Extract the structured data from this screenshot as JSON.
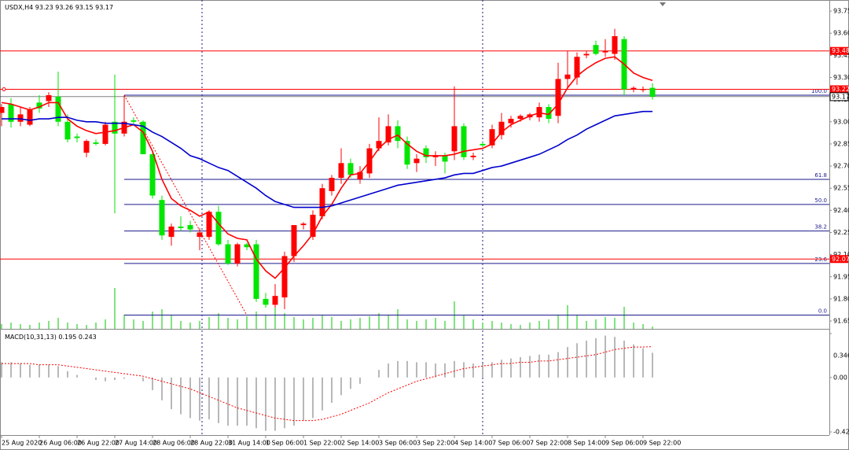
{
  "chart_data": [
    {
      "type": "candlestick",
      "title": "USDX,H4",
      "x": [
        "25 Aug 2020",
        null,
        null,
        null,
        "26 Aug 06:00",
        null,
        null,
        null,
        "26 Aug 22:00",
        null,
        null,
        null,
        "27 Aug 14:00",
        null,
        null,
        null,
        "28 Aug 06:00",
        null,
        null,
        null,
        "28 Aug 22:00",
        null,
        null,
        null,
        "31 Aug 14:00",
        null,
        null,
        null,
        "1 Sep 06:00",
        null,
        null,
        null,
        "1 Sep 22:00",
        null,
        null,
        null,
        "2 Sep 14:00",
        null,
        null,
        null,
        "3 Sep 06:00",
        null,
        null,
        null,
        "3 Sep 22:00",
        null,
        null,
        null,
        "4 Sep 14:00",
        null,
        null,
        null,
        "7 Sep 06:00",
        null,
        null,
        null,
        "7 Sep 22:00",
        null,
        null,
        null,
        "8 Sep 14:00",
        null,
        null,
        null,
        "9 Sep 06:00",
        null,
        null,
        null,
        "9 Sep 22:00",
        null
      ],
      "open": [
        93.06,
        93.12,
        93.0,
        92.98,
        93.13,
        93.14,
        93.17,
        93.0,
        92.9,
        92.79,
        92.86,
        92.85,
        93.0,
        92.92,
        93.01,
        93.0,
        92.78,
        92.47,
        92.22,
        92.29,
        92.3,
        92.22,
        92.22,
        92.39,
        92.17,
        92.04,
        92.17,
        92.17,
        91.8,
        91.76,
        91.81,
        92.09,
        92.3,
        92.22,
        92.36,
        92.53,
        92.62,
        92.72,
        92.61,
        92.65,
        92.82,
        92.86,
        92.97,
        92.87,
        92.72,
        92.82,
        92.76,
        92.77,
        92.8,
        92.97,
        92.76,
        92.85,
        92.84,
        92.91,
        92.99,
        93.02,
        93.03,
        93.03,
        93.1,
        93.04,
        93.29,
        93.3,
        93.45,
        93.52,
        93.47,
        93.46,
        93.56,
        93.22,
        93.22,
        93.23
      ],
      "high": [
        93.12,
        93.16,
        93.1,
        93.1,
        93.18,
        93.2,
        93.34,
        93.05,
        92.92,
        92.88,
        92.88,
        93.0,
        93.32,
        93.18,
        93.03,
        93.01,
        92.8,
        92.5,
        92.31,
        92.36,
        92.33,
        92.28,
        92.4,
        92.43,
        92.2,
        92.18,
        92.18,
        92.2,
        91.84,
        91.9,
        92.12,
        92.3,
        92.32,
        92.4,
        92.58,
        92.64,
        92.82,
        92.75,
        92.7,
        92.85,
        93.03,
        93.05,
        93.01,
        92.9,
        92.78,
        92.84,
        92.8,
        92.79,
        93.24,
        92.99,
        92.79,
        92.86,
        92.98,
        93.06,
        93.04,
        93.05,
        93.06,
        93.13,
        93.12,
        93.4,
        93.48,
        93.47,
        93.48,
        93.55,
        93.56,
        93.63,
        93.58,
        93.24,
        93.24,
        93.26
      ],
      "low": [
        92.97,
        92.96,
        92.97,
        92.97,
        93.06,
        93.1,
        92.97,
        92.86,
        92.86,
        92.76,
        92.84,
        92.84,
        92.38,
        92.9,
        92.98,
        92.78,
        92.48,
        92.2,
        92.16,
        92.26,
        92.25,
        92.13,
        92.2,
        92.16,
        92.03,
        92.02,
        92.13,
        91.78,
        91.74,
        91.74,
        91.73,
        92.05,
        92.27,
        92.2,
        92.34,
        92.5,
        92.58,
        92.62,
        92.58,
        92.62,
        92.8,
        92.84,
        92.82,
        92.68,
        92.66,
        92.72,
        92.7,
        92.65,
        92.74,
        92.74,
        92.74,
        92.83,
        92.82,
        92.88,
        92.96,
        93.0,
        93.01,
        93.0,
        92.99,
        92.99,
        93.22,
        93.25,
        93.43,
        93.45,
        93.44,
        93.42,
        93.18,
        93.2,
        93.2,
        93.15
      ],
      "close": [
        93.1,
        93.0,
        93.05,
        93.08,
        93.09,
        93.18,
        93.0,
        92.88,
        92.89,
        92.87,
        92.85,
        92.98,
        92.92,
        93.0,
        93.0,
        92.78,
        92.5,
        92.23,
        92.29,
        92.28,
        92.27,
        92.25,
        92.39,
        92.17,
        92.04,
        92.17,
        92.15,
        91.8,
        91.76,
        91.82,
        92.09,
        92.3,
        92.31,
        92.37,
        92.55,
        92.62,
        92.72,
        92.64,
        92.66,
        92.82,
        92.87,
        92.97,
        92.87,
        92.71,
        92.75,
        92.76,
        92.77,
        92.73,
        92.97,
        92.76,
        92.77,
        92.84,
        92.95,
        93.0,
        93.02,
        93.04,
        93.05,
        93.1,
        93.02,
        93.29,
        93.32,
        93.44,
        93.46,
        93.46,
        93.48,
        93.58,
        93.22,
        93.23,
        93.22,
        93.17
      ],
      "up_color": "#ff0000",
      "down_color": "#00e600",
      "series": [
        {
          "color": "#ff0000",
          "values": [
            93.13,
            93.12,
            93.1,
            93.08,
            93.1,
            93.13,
            93.13,
            93.02,
            92.97,
            92.94,
            92.92,
            92.93,
            92.94,
            92.96,
            92.98,
            92.93,
            92.8,
            92.61,
            92.48,
            92.43,
            92.4,
            92.36,
            92.39,
            92.31,
            92.24,
            92.21,
            92.2,
            92.07,
            91.99,
            91.94,
            92.01,
            92.09,
            92.16,
            92.24,
            92.36,
            92.44,
            92.55,
            92.64,
            92.65,
            92.73,
            92.82,
            92.88,
            92.91,
            92.85,
            92.8,
            92.77,
            92.77,
            92.77,
            92.78,
            92.8,
            92.81,
            92.82,
            92.85,
            92.93,
            92.98,
            93.01,
            93.04,
            93.06,
            93.05,
            93.12,
            93.23,
            93.31,
            93.36,
            93.4,
            93.43,
            93.44,
            93.39,
            93.33,
            93.3,
            93.28
          ]
        },
        {
          "color": "#0000cd",
          "values": [
            93.02,
            93.02,
            93.02,
            93.01,
            93.02,
            93.02,
            93.03,
            93.03,
            93.01,
            93.0,
            93.0,
            92.99,
            92.99,
            92.99,
            92.98,
            92.97,
            92.93,
            92.9,
            92.86,
            92.82,
            92.77,
            92.75,
            92.72,
            92.69,
            92.67,
            92.63,
            92.59,
            92.55,
            92.5,
            92.46,
            92.44,
            92.42,
            92.42,
            92.42,
            92.42,
            92.43,
            92.45,
            92.47,
            92.49,
            92.51,
            92.53,
            92.55,
            92.57,
            92.58,
            92.59,
            92.6,
            92.61,
            92.62,
            92.64,
            92.65,
            92.65,
            92.67,
            92.69,
            92.7,
            92.72,
            92.74,
            92.76,
            92.78,
            92.81,
            92.84,
            92.88,
            92.91,
            92.95,
            92.98,
            93.01,
            93.04,
            93.05,
            93.06,
            93.07,
            93.07
          ]
        }
      ],
      "volume": {
        "color": "#00c800",
        "values": [
          600,
          800,
          600,
          500,
          800,
          1000,
          1400,
          800,
          600,
          500,
          800,
          1200,
          5200,
          1800,
          1200,
          1000,
          2200,
          2500,
          1800,
          1000,
          800,
          1000,
          1500,
          2000,
          1400,
          1200,
          1600,
          2200,
          1800,
          2800,
          2000,
          1500,
          1200,
          1400,
          1800,
          1500,
          1000,
          1200,
          1400,
          1600,
          2000,
          1800,
          2500,
          1200,
          1000,
          1200,
          1400,
          1000,
          3500,
          1800,
          1200,
          800,
          1000,
          800,
          600,
          500,
          800,
          1000,
          1200,
          1800,
          3000,
          1800,
          1000,
          1200,
          1500,
          1400,
          2800,
          800,
          600,
          300
        ]
      },
      "hlines": [
        {
          "value": 93.48,
          "color": "#ff0000"
        },
        {
          "value": 93.22,
          "color": "#ff0000"
        },
        {
          "value": 92.07,
          "color": "#ff0000"
        }
      ],
      "price_line": {
        "value": 93.17,
        "color": "#000000"
      },
      "fibonacci": {
        "color": "#1a1a8c",
        "levels": [
          {
            "value": 0,
            "label": "0.0"
          },
          23.6,
          38.2,
          {
            "value": 50,
            "label": "50.0"
          },
          61.8,
          {
            "value": 100,
            "label": "100.0"
          }
        ],
        "prices": [
          91.69,
          92.04,
          92.26,
          92.44,
          92.61,
          93.18
        ]
      },
      "ylim": [
        91.597,
        93.825
      ],
      "yticks": [
        91.65,
        {
          "value": 91.8,
          "label": "91.80"
        },
        91.95,
        {
          "value": 92.1,
          "label": "92.10"
        },
        92.25,
        {
          "value": 92.4,
          "label": "92.40"
        },
        92.55,
        {
          "value": 92.7,
          "label": "92.70"
        },
        92.85,
        {
          "value": 93,
          "label": "93.00"
        },
        93.15,
        {
          "value": 93.3,
          "label": "93.30"
        },
        93.45,
        {
          "value": 93.6,
          "label": "93.60"
        },
        93.75
      ]
    },
    {
      "type": "macd",
      "title": "MACD(10,31,13)",
      "histogram": {
        "color": "#a0a0a0",
        "values": [
          0.12,
          0.12,
          0.11,
          0.1,
          0.1,
          0.1,
          0.09,
          0.05,
          0.02,
          0.0,
          -0.02,
          -0.03,
          -0.02,
          -0.01,
          0.0,
          -0.03,
          -0.1,
          -0.18,
          -0.25,
          -0.29,
          -0.32,
          -0.34,
          -0.33,
          -0.36,
          -0.38,
          -0.38,
          -0.38,
          -0.4,
          -0.42,
          -0.42,
          -0.4,
          -0.38,
          -0.34,
          -0.32,
          -0.26,
          -0.2,
          -0.14,
          -0.09,
          -0.05,
          0.0,
          0.06,
          0.11,
          0.13,
          0.13,
          0.12,
          0.12,
          0.11,
          0.11,
          0.13,
          0.12,
          0.11,
          0.11,
          0.12,
          0.14,
          0.15,
          0.16,
          0.17,
          0.18,
          0.18,
          0.2,
          0.24,
          0.27,
          0.29,
          0.31,
          0.33,
          0.32,
          0.29,
          0.26,
          0.23,
          0.195
        ]
      },
      "signal": {
        "color": "#ff0000",
        "values": [
          0.11,
          0.11,
          0.11,
          0.11,
          0.1,
          0.1,
          0.1,
          0.09,
          0.08,
          0.07,
          0.06,
          0.05,
          0.04,
          0.03,
          0.02,
          0.01,
          -0.01,
          -0.03,
          -0.05,
          -0.07,
          -0.09,
          -0.12,
          -0.15,
          -0.18,
          -0.21,
          -0.24,
          -0.26,
          -0.28,
          -0.3,
          -0.32,
          -0.33,
          -0.34,
          -0.34,
          -0.34,
          -0.33,
          -0.31,
          -0.29,
          -0.26,
          -0.23,
          -0.2,
          -0.16,
          -0.12,
          -0.09,
          -0.06,
          -0.03,
          -0.01,
          0.01,
          0.03,
          0.05,
          0.07,
          0.08,
          0.09,
          0.1,
          0.11,
          0.11,
          0.12,
          0.12,
          0.13,
          0.13,
          0.14,
          0.15,
          0.16,
          0.17,
          0.18,
          0.2,
          0.22,
          0.23,
          0.24,
          0.24,
          0.243
        ]
      },
      "ylim": [
        -0.429,
        0.346
      ],
      "yticks": [
        0.346,
        {
          "value": 0,
          "label": "0.00"
        },
        -0.429
      ]
    }
  ]
}
